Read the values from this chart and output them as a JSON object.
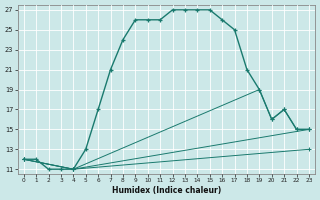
{
  "title": "",
  "xlabel": "Humidex (Indice chaleur)",
  "bg_color": "#cce8e8",
  "line_color": "#1a7a6e",
  "grid_color": "#ffffff",
  "xlim": [
    -0.5,
    23.5
  ],
  "ylim": [
    10.5,
    27.5
  ],
  "xticks": [
    0,
    1,
    2,
    3,
    4,
    5,
    6,
    7,
    8,
    9,
    10,
    11,
    12,
    13,
    14,
    15,
    16,
    17,
    18,
    19,
    20,
    21,
    22,
    23
  ],
  "yticks": [
    11,
    13,
    15,
    17,
    19,
    21,
    23,
    25,
    27
  ],
  "line1_x": [
    0,
    1,
    2,
    3,
    4,
    5,
    6,
    7,
    8,
    9,
    10,
    11,
    12,
    13,
    14,
    15,
    16,
    17,
    18,
    19,
    20,
    21,
    22,
    23
  ],
  "line1_y": [
    12,
    12,
    11,
    11,
    11,
    13,
    17,
    21,
    24,
    26,
    26,
    26,
    27,
    27,
    27,
    27,
    26,
    25,
    21,
    19,
    16,
    17,
    15,
    15
  ],
  "line2_x": [
    0,
    4,
    19,
    20,
    21,
    22,
    23
  ],
  "line2_y": [
    12,
    11,
    19,
    16,
    17,
    15,
    15
  ],
  "line3_x": [
    0,
    4,
    23
  ],
  "line3_y": [
    12,
    11,
    15
  ],
  "line4_x": [
    0,
    4,
    23
  ],
  "line4_y": [
    12,
    11,
    13
  ]
}
